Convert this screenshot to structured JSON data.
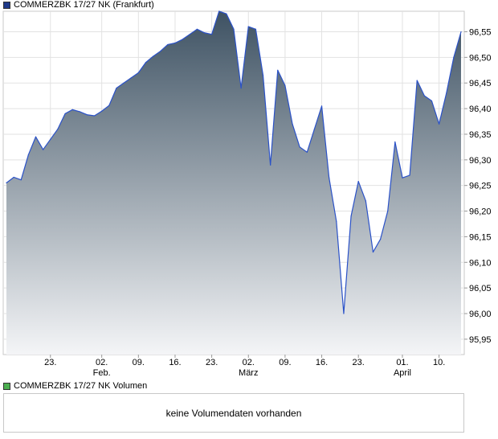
{
  "legend": {
    "price_label": "COMMERZBK 17/27   NK (Frankfurt)",
    "price_color": "#1f3a8a",
    "volume_label": "COMMERZBK 17/27   NK Volumen",
    "volume_color": "#4caf50"
  },
  "volume": {
    "message": "keine Volumendaten vorhanden"
  },
  "chart_data": {
    "type": "area",
    "title": "",
    "xlabel": "",
    "ylabel": "",
    "ylim": [
      95.92,
      96.59
    ],
    "y_ticks": [
      "96,55",
      "96,50",
      "96,45",
      "96,40",
      "96,35",
      "96,30",
      "96,25",
      "96,20",
      "96,15",
      "96,10",
      "96,05",
      "96,00",
      "95,95"
    ],
    "y_tick_values": [
      96.55,
      96.5,
      96.45,
      96.4,
      96.35,
      96.3,
      96.25,
      96.2,
      96.15,
      96.1,
      96.05,
      96.0,
      95.95
    ],
    "x_ticks": [
      {
        "label": "23.",
        "sub": "",
        "index": 6
      },
      {
        "label": "02.",
        "sub": "Feb.",
        "index": 13
      },
      {
        "label": "09.",
        "sub": "",
        "index": 18
      },
      {
        "label": "16.",
        "sub": "",
        "index": 23
      },
      {
        "label": "23.",
        "sub": "",
        "index": 28
      },
      {
        "label": "02.",
        "sub": "März",
        "index": 33
      },
      {
        "label": "09.",
        "sub": "",
        "index": 38
      },
      {
        "label": "16.",
        "sub": "",
        "index": 43
      },
      {
        "label": "23.",
        "sub": "",
        "index": 48
      },
      {
        "label": "01.",
        "sub": "April",
        "index": 54
      },
      {
        "label": "10.",
        "sub": "",
        "index": 59
      }
    ],
    "grid": true,
    "series": [
      {
        "line_color": "#2b52c8",
        "fill_top": "#3e5263",
        "fill_bottom": "#f4f5f7",
        "values": [
          96.255,
          96.266,
          96.261,
          96.31,
          96.345,
          96.32,
          96.34,
          96.36,
          96.39,
          96.398,
          96.394,
          96.388,
          96.386,
          96.395,
          96.406,
          96.44,
          96.45,
          96.46,
          96.47,
          96.49,
          96.502,
          96.512,
          96.525,
          96.528,
          96.535,
          96.545,
          96.555,
          96.548,
          96.545,
          96.59,
          96.585,
          96.555,
          96.44,
          96.56,
          96.555,
          96.465,
          96.29,
          96.475,
          96.445,
          96.37,
          96.325,
          96.315,
          96.36,
          96.405,
          96.265,
          96.18,
          96.0,
          96.19,
          96.258,
          96.22,
          96.12,
          96.145,
          96.2,
          96.335,
          96.265,
          96.27,
          96.455,
          96.425,
          96.415,
          96.37,
          96.43,
          96.5,
          96.55
        ]
      }
    ]
  }
}
